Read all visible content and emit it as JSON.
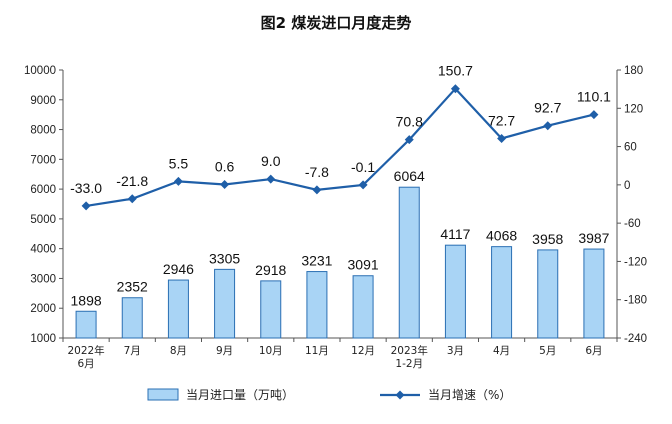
{
  "chart_data": {
    "type": "bar",
    "title": "图2  煤炭进口月度走势",
    "categories": [
      [
        "2022年",
        "6月"
      ],
      [
        "7月"
      ],
      [
        "8月"
      ],
      [
        "9月"
      ],
      [
        "10月"
      ],
      [
        "11月"
      ],
      [
        "12月"
      ],
      [
        "2023年",
        "1-2月"
      ],
      [
        "3月"
      ],
      [
        "4月"
      ],
      [
        "5月"
      ],
      [
        "6月"
      ]
    ],
    "series": [
      {
        "name": "当月进口量（万吨）",
        "type": "bar",
        "axis": "left",
        "color": "#a9d4f5",
        "values": [
          1898,
          2352,
          2946,
          3305,
          2918,
          3231,
          3091,
          6064,
          4117,
          4068,
          3958,
          3987
        ],
        "labels": [
          "1898",
          "2352",
          "2946",
          "3305",
          "2918",
          "3231",
          "3091",
          "6064",
          "4117",
          "4068",
          "3958",
          "3987"
        ]
      },
      {
        "name": "当月增速（%）",
        "type": "line",
        "axis": "right",
        "color": "#1f5fa8",
        "values": [
          -33.0,
          -21.8,
          5.5,
          0.6,
          9.0,
          -7.8,
          -0.1,
          70.8,
          150.7,
          72.7,
          92.7,
          110.1
        ],
        "labels": [
          "-33.0",
          "-21.8",
          "5.5",
          "0.6",
          "9.0",
          "-7.8",
          "-0.1",
          "70.8",
          "150.7",
          "72.7",
          "92.7",
          "110.1"
        ]
      }
    ],
    "y_left": {
      "min": 1000,
      "max": 10000,
      "ticks": [
        "1000",
        "2000",
        "3000",
        "4000",
        "5000",
        "6000",
        "7000",
        "8000",
        "9000",
        "10000"
      ]
    },
    "y_right": {
      "min": -240,
      "max": 180,
      "ticks": [
        "-240",
        "-180",
        "-120",
        "-60",
        "0",
        "60",
        "120",
        "180"
      ]
    },
    "legend": {
      "position": "bottom",
      "bar_label": "当月进口量（万吨）",
      "line_label": "当月增速（%）"
    },
    "grid": false
  }
}
